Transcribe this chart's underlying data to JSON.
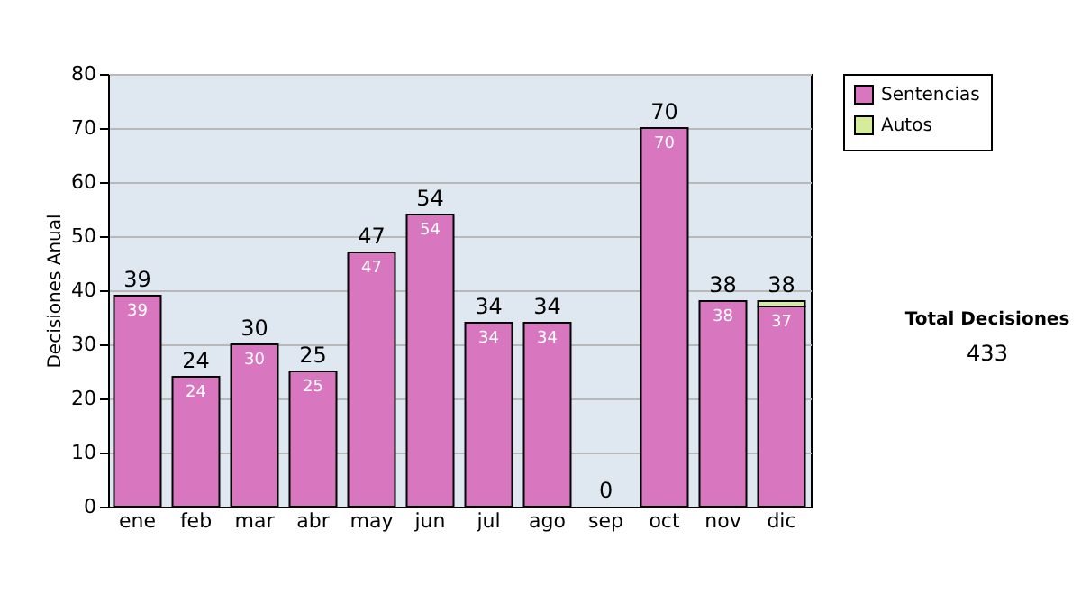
{
  "chart_data": {
    "type": "bar",
    "stacked": true,
    "ylabel": "Decisiones Anual",
    "categories": [
      "ene",
      "feb",
      "mar",
      "abr",
      "may",
      "jun",
      "jul",
      "ago",
      "sep",
      "oct",
      "nov",
      "dic"
    ],
    "series": [
      {
        "name": "Sentencias",
        "color": "#d877bf",
        "values": [
          39,
          24,
          30,
          25,
          47,
          54,
          34,
          34,
          0,
          70,
          38,
          37
        ],
        "value_labels": [
          "39",
          "24",
          "30",
          "25",
          "47",
          "54",
          "34",
          "34",
          null,
          "70",
          "38",
          "37"
        ]
      },
      {
        "name": "Autos",
        "color": "#d4ec9c",
        "values": [
          0,
          0,
          0,
          0,
          0,
          0,
          0,
          0,
          0,
          0,
          0,
          1
        ]
      }
    ],
    "totals": [
      "39",
      "24",
      "30",
      "25",
      "47",
      "54",
      "34",
      "34",
      "0",
      "70",
      "38",
      "38"
    ],
    "ylim": [
      0,
      80
    ],
    "yticks": [
      0,
      10,
      20,
      30,
      40,
      50,
      60,
      70,
      80
    ],
    "grid": "y",
    "legend": "right",
    "annotations": [
      "Total Decisiones",
      "433"
    ]
  }
}
